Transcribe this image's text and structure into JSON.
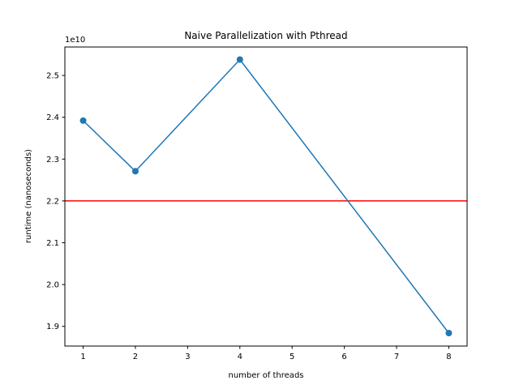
{
  "chart_data": {
    "type": "line",
    "title": "Naive Parallelization with Pthread",
    "xlabel": "number of threads",
    "ylabel": "runtime (nanoseconds)",
    "y_offset_label": "1e10",
    "xlim": [
      0.65,
      8.35
    ],
    "ylim": [
      1.853,
      2.568
    ],
    "x_ticks": [
      1,
      2,
      3,
      4,
      5,
      6,
      7,
      8
    ],
    "y_ticks": [
      1.9,
      2.0,
      2.1,
      2.2,
      2.3,
      2.4,
      2.5
    ],
    "y_tick_labels": [
      "1.9",
      "2.0",
      "2.1",
      "2.2",
      "2.3",
      "2.4",
      "2.5"
    ],
    "grid": false,
    "series": [
      {
        "x": [
          1,
          2,
          4,
          8
        ],
        "y": [
          2.392,
          2.271,
          2.538,
          1.884
        ],
        "color": "#1f77b4",
        "marker": "circle"
      }
    ],
    "hlines": [
      {
        "y": 2.2,
        "color": "#ff0000"
      }
    ]
  }
}
